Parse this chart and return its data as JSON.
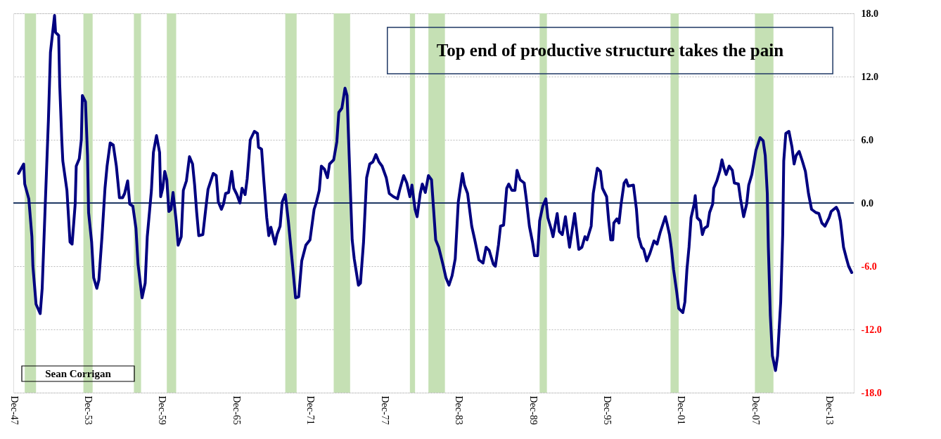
{
  "chart_data": {
    "type": "line",
    "title": "Top end of productive structure takes the pain",
    "annotations": [
      "Sean Corrigan"
    ],
    "x": [
      "1948-05",
      "1948-10",
      "1948-11",
      "1949-03",
      "1949-06",
      "1949-07",
      "1949-10",
      "1950-02",
      "1950-04",
      "1950-07",
      "1950-10",
      "1950-12",
      "1951-04",
      "1951-05",
      "1951-08",
      "1951-09",
      "1951-11",
      "1951-12",
      "1952-04",
      "1952-07",
      "1952-09",
      "1952-12",
      "1953-01",
      "1953-04",
      "1953-06",
      "1953-07",
      "1953-10",
      "1953-12",
      "1954-01",
      "1954-04",
      "1954-06",
      "1954-09",
      "1954-11",
      "1955-02",
      "1955-05",
      "1955-07",
      "1955-10",
      "1956-01",
      "1956-04",
      "1956-07",
      "1956-10",
      "1956-12",
      "1957-03",
      "1957-05",
      "1957-08",
      "1957-11",
      "1958-01",
      "1958-05",
      "1958-08",
      "1958-10",
      "1959-02",
      "1959-04",
      "1959-07",
      "1959-10",
      "1959-11",
      "1960-01",
      "1960-03",
      "1960-05",
      "1960-07",
      "1960-09",
      "1960-11",
      "1961-02",
      "1961-04",
      "1961-07",
      "1961-09",
      "1961-12",
      "1962-03",
      "1962-06",
      "1962-08",
      "1962-10",
      "1962-12",
      "1963-04",
      "1963-07",
      "1963-09",
      "1964-02",
      "1964-05",
      "1964-07",
      "1964-10",
      "1964-12",
      "1965-02",
      "1965-05",
      "1965-08",
      "1965-10",
      "1966-01",
      "1966-04",
      "1966-06",
      "1966-09",
      "1966-11",
      "1967-02",
      "1967-06",
      "1967-09",
      "1967-10",
      "1968-01",
      "1968-03",
      "1968-06",
      "1968-08",
      "1968-10",
      "1969-02",
      "1969-04",
      "1969-07",
      "1969-09",
      "1969-12",
      "1970-03",
      "1970-07",
      "1970-10",
      "1971-01",
      "1971-04",
      "1971-08",
      "1971-12",
      "1972-04",
      "1972-06",
      "1972-09",
      "1972-11",
      "1973-02",
      "1973-05",
      "1973-07",
      "1973-11",
      "1974-02",
      "1974-04",
      "1974-07",
      "1974-10",
      "1974-12",
      "1975-02",
      "1975-05",
      "1975-07",
      "1975-11",
      "1976-01",
      "1976-04",
      "1976-07",
      "1976-10",
      "1977-01",
      "1977-04",
      "1977-07",
      "1977-10",
      "1978-02",
      "1978-05",
      "1978-09",
      "1979-01",
      "1979-03",
      "1979-07",
      "1979-10",
      "1980-01",
      "1980-03",
      "1980-06",
      "1980-08",
      "1980-11",
      "1981-01",
      "1981-04",
      "1981-07",
      "1981-10",
      "1981-12",
      "1982-02",
      "1982-05",
      "1982-09",
      "1982-12",
      "1983-03",
      "1983-06",
      "1983-09",
      "1983-12",
      "1984-04",
      "1984-06",
      "1984-09",
      "1985-01",
      "1985-04",
      "1985-08",
      "1985-12",
      "1986-03",
      "1986-06",
      "1986-10",
      "1986-12",
      "1987-03",
      "1987-05",
      "1987-08",
      "1987-11",
      "1988-01",
      "1988-04",
      "1988-07",
      "1988-09",
      "1988-12",
      "1989-04",
      "1989-06",
      "1989-09",
      "1989-12",
      "1990-02",
      "1990-05",
      "1990-07",
      "1990-10",
      "1991-01",
      "1991-03",
      "1991-06",
      "1991-08",
      "1991-12",
      "1992-02",
      "1992-05",
      "1992-08",
      "1992-12",
      "1993-05",
      "1993-09",
      "1993-12",
      "1994-03",
      "1994-05",
      "1994-09",
      "1994-11",
      "1995-03",
      "1995-06",
      "1995-08",
      "1995-12",
      "1996-02",
      "1996-04",
      "1996-06",
      "1996-07",
      "1996-10",
      "1996-12",
      "1997-02",
      "1997-05",
      "1997-07",
      "1997-09",
      "1998-02",
      "1998-05",
      "1998-07",
      "1998-10",
      "1998-12",
      "1999-03",
      "1999-06",
      "1999-10",
      "2000-01",
      "2000-04",
      "2000-09",
      "2000-11",
      "2001-01",
      "2001-03",
      "2001-05",
      "2001-08",
      "2001-10",
      "2002-02",
      "2002-04",
      "2002-06",
      "2002-08",
      "2002-10",
      "2003-01",
      "2003-02",
      "2003-04",
      "2003-07",
      "2003-09",
      "2003-11",
      "2004-02",
      "2004-04",
      "2004-07",
      "2004-08",
      "2004-11",
      "2005-02",
      "2005-04",
      "2005-06",
      "2005-08",
      "2005-11",
      "2006-02",
      "2006-04",
      "2006-08",
      "2006-10",
      "2007-01",
      "2007-04",
      "2007-06",
      "2007-09",
      "2008-01",
      "2008-05",
      "2008-08",
      "2008-10",
      "2008-12",
      "2009-01",
      "2009-03",
      "2009-05",
      "2009-08",
      "2009-10",
      "2010-01",
      "2010-03",
      "2010-04",
      "2010-06",
      "2010-09",
      "2010-12",
      "2011-02",
      "2011-04",
      "2011-07",
      "2011-10",
      "2012-01",
      "2012-04",
      "2012-07",
      "2012-11",
      "2013-02",
      "2013-05",
      "2013-08",
      "2013-12",
      "2014-02",
      "2014-07",
      "2014-09",
      "2014-11",
      "2015-02",
      "2015-05",
      "2015-07",
      "2015-10"
    ],
    "series": [
      {
        "color": "#000080",
        "values": [
          2.8,
          3.7,
          1.8,
          0.4,
          -3.2,
          -6.0,
          -9.6,
          -10.5,
          -8.1,
          -0.1,
          7.8,
          14.3,
          17.8,
          16.2,
          15.9,
          11.2,
          6.0,
          4.0,
          1.2,
          -3.7,
          -3.9,
          -0.1,
          3.5,
          4.2,
          6.0,
          10.2,
          9.6,
          4.5,
          -0.9,
          -3.7,
          -7.1,
          -8.1,
          -7.3,
          -3.2,
          1.4,
          3.5,
          5.7,
          5.5,
          3.5,
          0.5,
          0.5,
          0.9,
          2.1,
          -0.1,
          -0.3,
          -2.4,
          -5.8,
          -9.0,
          -7.6,
          -3.2,
          1.2,
          4.8,
          6.4,
          4.8,
          0.6,
          1.4,
          3.0,
          2.2,
          -0.8,
          -0.6,
          1.0,
          -1.7,
          -4.0,
          -3.2,
          1.2,
          2.1,
          4.4,
          3.7,
          1.7,
          -0.9,
          -3.1,
          -3.0,
          -0.4,
          1.3,
          2.8,
          2.6,
          0.1,
          -0.6,
          -0.1,
          0.9,
          1.0,
          3.0,
          1.4,
          0.8,
          0.0,
          1.4,
          0.8,
          2.3,
          6.0,
          6.8,
          6.6,
          5.3,
          5.1,
          2.4,
          -1.4,
          -3.1,
          -2.3,
          -3.9,
          -3.0,
          -2.2,
          0.1,
          0.8,
          -1.7,
          -5.8,
          -9.0,
          -8.9,
          -5.5,
          -4.0,
          -3.5,
          -0.6,
          0.0,
          1.2,
          3.5,
          3.2,
          2.4,
          3.7,
          4.1,
          5.8,
          8.6,
          9.0,
          10.9,
          10.2,
          4.5,
          -3.5,
          -5.3,
          -7.8,
          -7.6,
          -3.7,
          2.4,
          3.7,
          3.9,
          4.6,
          3.9,
          3.5,
          2.4,
          0.9,
          0.6,
          0.4,
          1.2,
          2.6,
          1.9,
          0.6,
          1.7,
          -0.6,
          -1.3,
          0.9,
          1.8,
          1.0,
          2.6,
          2.2,
          -0.6,
          -3.5,
          -4.2,
          -5.8,
          -7.1,
          -7.8,
          -6.9,
          -5.3,
          0.1,
          2.8,
          1.7,
          0.9,
          -2.2,
          -3.5,
          -5.4,
          -5.7,
          -4.2,
          -4.5,
          -5.8,
          -6.0,
          -4.0,
          -2.2,
          -2.1,
          1.4,
          1.8,
          1.2,
          1.2,
          3.1,
          2.2,
          1.9,
          0.4,
          -2.2,
          -3.7,
          -5.0,
          -5.0,
          -1.7,
          -0.3,
          0.4,
          -1.4,
          -2.4,
          -3.2,
          -1.0,
          -2.7,
          -3.0,
          -1.3,
          -4.2,
          -1.0,
          -4.4,
          -4.2,
          -3.2,
          -3.5,
          -2.2,
          0.9,
          3.3,
          3.0,
          1.4,
          0.6,
          -1.7,
          -3.5,
          -3.5,
          -1.9,
          -1.5,
          -1.9,
          -0.1,
          1.9,
          2.2,
          1.6,
          1.7,
          -0.6,
          -3.2,
          -4.2,
          -4.4,
          -5.5,
          -4.8,
          -3.6,
          -3.9,
          -2.8,
          -1.3,
          -2.1,
          -3.0,
          -4.4,
          -6.3,
          -8.4,
          -10.0,
          -10.4,
          -9.4,
          -6.3,
          -4.2,
          -1.4,
          -0.1,
          0.7,
          -1.4,
          -1.7,
          -3.0,
          -2.4,
          -2.2,
          -0.9,
          -0.1,
          1.4,
          2.1,
          3.1,
          4.1,
          3.3,
          2.7,
          3.5,
          3.1,
          1.9,
          1.8,
          0.4,
          -1.3,
          -0.1,
          1.7,
          2.7,
          5.0,
          6.2,
          5.9,
          4.5,
          0.9,
          -4.2,
          -10.7,
          -14.5,
          -15.9,
          -14.5,
          -9.4,
          -3.0,
          4.0,
          6.6,
          6.8,
          5.3,
          3.7,
          4.5,
          4.9,
          4.0,
          3.0,
          0.9,
          -0.6,
          -0.9,
          -1.0,
          -1.9,
          -2.2,
          -1.4,
          -0.8,
          -0.4,
          -0.8,
          -1.7,
          -4.2,
          -5.3,
          -6.0,
          -6.6
        ]
      }
    ],
    "xlim": [
      "1947-12",
      "2015-12"
    ],
    "xticks": [
      {
        "value": "1947-12",
        "label": "Dec-47"
      },
      {
        "value": "1953-12",
        "label": "Dec-53"
      },
      {
        "value": "1959-12",
        "label": "Dec-59"
      },
      {
        "value": "1965-12",
        "label": "Dec-65"
      },
      {
        "value": "1971-12",
        "label": "Dec-71"
      },
      {
        "value": "1977-12",
        "label": "Dec-77"
      },
      {
        "value": "1983-12",
        "label": "Dec-83"
      },
      {
        "value": "1989-12",
        "label": "Dec-89"
      },
      {
        "value": "1995-12",
        "label": "Dec-95"
      },
      {
        "value": "2001-12",
        "label": "Dec-01"
      },
      {
        "value": "2007-12",
        "label": "Dec-07"
      },
      {
        "value": "2013-12",
        "label": "Dec-13"
      }
    ],
    "ylim": [
      -18,
      18
    ],
    "yticks": [
      {
        "value": -18,
        "label": "-18.0"
      },
      {
        "value": -12,
        "label": "-12.0"
      },
      {
        "value": -6,
        "label": "-6.0"
      },
      {
        "value": 0,
        "label": "0.0"
      },
      {
        "value": 6,
        "label": "6.0"
      },
      {
        "value": 12,
        "label": "12.0"
      },
      {
        "value": 18,
        "label": "18.0"
      }
    ],
    "grid": "y",
    "marker": "none",
    "line_style": "solid",
    "ref_lines": [
      {
        "axis": "y",
        "value": 0,
        "color": "#1f3864"
      }
    ],
    "bands": [
      {
        "axis": "x",
        "from": "1948-11",
        "to": "1949-10",
        "color": "#c5e0b4"
      },
      {
        "axis": "x",
        "from": "1953-08",
        "to": "1954-05",
        "color": "#c5e0b4"
      },
      {
        "axis": "x",
        "from": "1957-09",
        "to": "1958-04",
        "color": "#c5e0b4"
      },
      {
        "axis": "x",
        "from": "1960-05",
        "to": "1961-02",
        "color": "#c5e0b4"
      },
      {
        "axis": "x",
        "from": "1969-12",
        "to": "1970-11",
        "color": "#c5e0b4"
      },
      {
        "axis": "x",
        "from": "1973-11",
        "to": "1975-03",
        "color": "#c5e0b4"
      },
      {
        "axis": "x",
        "from": "1980-01",
        "to": "1980-06",
        "color": "#c5e0b4"
      },
      {
        "axis": "x",
        "from": "1981-07",
        "to": "1982-11",
        "color": "#c5e0b4"
      },
      {
        "axis": "x",
        "from": "1990-07",
        "to": "1991-02",
        "color": "#c5e0b4"
      },
      {
        "axis": "x",
        "from": "2001-02",
        "to": "2001-10",
        "color": "#c5e0b4"
      },
      {
        "axis": "x",
        "from": "2007-12",
        "to": "2009-06",
        "color": "#c5e0b4"
      }
    ]
  }
}
